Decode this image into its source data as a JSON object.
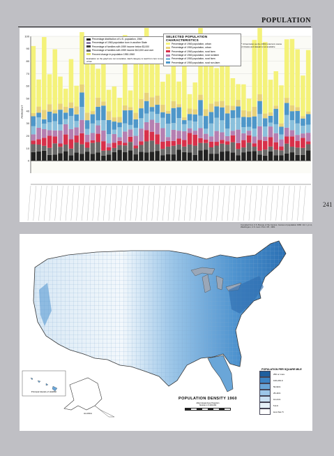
{
  "page": {
    "title": "POPULATION",
    "number": "241"
  },
  "chart_data": {
    "type": "bar",
    "title": "SELECTED POPULATION CHARACTERISTICS",
    "ylabel": "PERCENT",
    "ylim": [
      -10,
      100
    ],
    "yticks": [
      0,
      10,
      20,
      30,
      40,
      50,
      60,
      70,
      80,
      90,
      100
    ],
    "grid": true,
    "legend_left": [
      {
        "label": "Percentage distribution of U.S. population, 1960",
        "color": "#222222"
      },
      {
        "label": "Percentage of 1960 population born in another State",
        "color": "#8e7ea8"
      },
      {
        "label": "Percentage of families with 1959 income below $3,000",
        "color": "#3a3a3a"
      },
      {
        "label": "Percentage of families with 1959 income $10,000 and over",
        "color": "#6a6a6a"
      },
      {
        "label": "Percent change in population 1950-1960",
        "color": "#e0e060"
      }
    ],
    "legend_left_note": "Evaluation on the graph are not cumulative. Each category is read from zero to top of bar.",
    "legend_right": [
      {
        "label": "Percentage of 1960 population, urban",
        "color": "#f4f27a"
      },
      {
        "label": "Percentage of 1950 population, urban",
        "color": "#e8d27a"
      },
      {
        "label": "Percentage of 1960 population, rural farm",
        "color": "#d8304a"
      },
      {
        "label": "Percentage of 1960 population, rural nonfarm",
        "color": "#b57fb1"
      },
      {
        "label": "Percentage of 1950 population, rural farm",
        "color": "#8ac0dc"
      },
      {
        "label": "Percentage of 1950 population, rural non-farm",
        "color": "#4e97c9"
      }
    ],
    "note_right": "* Urbanization as the 1950 rural-farm status of Alaska and Hawaii is not available"
  },
  "source_note": "Compiled from U.S. Bureau of the Census, Census of population 1960. Vol. I, pt. A, Washington, U.S. Govt. Print. Off., 1961",
  "map": {
    "title": "POPULATION DENSITY 1960",
    "projection": "Albers Equal Area Projection",
    "scale": "SCALE 1:17,000,000",
    "legend_title": "POPULATION PER SQUARE MILE",
    "legend": [
      {
        "label": "250 or more",
        "color": "#1f5f9e"
      },
      {
        "label": "100-249.9",
        "color": "#3d84c4"
      },
      {
        "label": "50-99.9",
        "color": "#6aa6d8"
      },
      {
        "label": "25-49.9",
        "color": "#9cc6e8"
      },
      {
        "label": "10-24.9",
        "color": "#c9e0f2"
      },
      {
        "label": "5-9.9",
        "color": "#e5f0f8"
      },
      {
        "label": "less than 5",
        "color": "#ffffff"
      }
    ],
    "hawaii_label": "Principal Islands of HAWAII",
    "alaska_label": "ALASKA"
  }
}
